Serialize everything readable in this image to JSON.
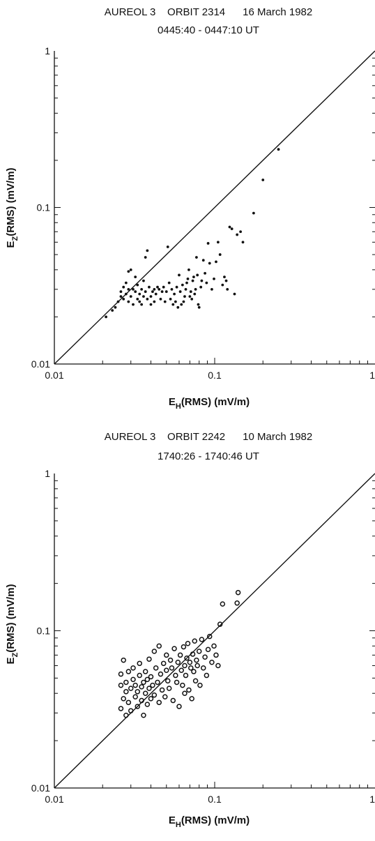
{
  "chart_data": [
    {
      "type": "scatter",
      "title_line1": [
        "AUREOL 3",
        "ORBIT 2314",
        "16 March 1982"
      ],
      "title_line2": "0445:40 - 0447:10 UT",
      "xlabel": {
        "main": "E",
        "sub": "H",
        "rest": "(RMS) (mV/m)"
      },
      "ylabel": {
        "main": "E",
        "sub": "Z",
        "rest": "(RMS) (mV/m)"
      },
      "xscale": "log",
      "yscale": "log",
      "xlim": [
        0.01,
        1
      ],
      "ylim": [
        0.01,
        1
      ],
      "x_tick_labels": [
        "0.01",
        "0.1",
        "1"
      ],
      "y_tick_labels": [
        "0.01",
        "0.1",
        "1"
      ],
      "reference_line": "y = x",
      "marker": "filled dot",
      "points": [
        [
          0.021,
          0.02
        ],
        [
          0.023,
          0.022
        ],
        [
          0.024,
          0.023
        ],
        [
          0.025,
          0.025
        ],
        [
          0.026,
          0.027
        ],
        [
          0.026,
          0.029
        ],
        [
          0.027,
          0.026
        ],
        [
          0.027,
          0.031
        ],
        [
          0.028,
          0.028
        ],
        [
          0.028,
          0.033
        ],
        [
          0.029,
          0.025
        ],
        [
          0.029,
          0.03
        ],
        [
          0.029,
          0.039
        ],
        [
          0.03,
          0.04
        ],
        [
          0.03,
          0.027
        ],
        [
          0.031,
          0.024
        ],
        [
          0.031,
          0.03
        ],
        [
          0.032,
          0.029
        ],
        [
          0.032,
          0.036
        ],
        [
          0.033,
          0.026
        ],
        [
          0.033,
          0.032
        ],
        [
          0.034,
          0.028
        ],
        [
          0.034,
          0.025
        ],
        [
          0.035,
          0.03
        ],
        [
          0.035,
          0.024
        ],
        [
          0.036,
          0.027
        ],
        [
          0.036,
          0.034
        ],
        [
          0.037,
          0.029
        ],
        [
          0.037,
          0.048
        ],
        [
          0.038,
          0.053
        ],
        [
          0.038,
          0.026
        ],
        [
          0.039,
          0.031
        ],
        [
          0.04,
          0.027
        ],
        [
          0.04,
          0.024
        ],
        [
          0.041,
          0.029
        ],
        [
          0.042,
          0.03
        ],
        [
          0.042,
          0.025
        ],
        [
          0.043,
          0.028
        ],
        [
          0.044,
          0.031
        ],
        [
          0.045,
          0.03
        ],
        [
          0.046,
          0.026
        ],
        [
          0.047,
          0.029
        ],
        [
          0.048,
          0.031
        ],
        [
          0.049,
          0.025
        ],
        [
          0.05,
          0.029
        ],
        [
          0.051,
          0.056
        ],
        [
          0.052,
          0.033
        ],
        [
          0.053,
          0.026
        ],
        [
          0.054,
          0.03
        ],
        [
          0.055,
          0.024
        ],
        [
          0.056,
          0.028
        ],
        [
          0.057,
          0.025
        ],
        [
          0.058,
          0.031
        ],
        [
          0.059,
          0.023
        ],
        [
          0.06,
          0.037
        ],
        [
          0.061,
          0.029
        ],
        [
          0.062,
          0.024
        ],
        [
          0.063,
          0.032
        ],
        [
          0.064,
          0.025
        ],
        [
          0.065,
          0.027
        ],
        [
          0.066,
          0.03
        ],
        [
          0.067,
          0.033
        ],
        [
          0.068,
          0.035
        ],
        [
          0.069,
          0.04
        ],
        [
          0.07,
          0.027
        ],
        [
          0.071,
          0.029
        ],
        [
          0.072,
          0.026
        ],
        [
          0.073,
          0.034
        ],
        [
          0.074,
          0.036
        ],
        [
          0.075,
          0.028
        ],
        [
          0.076,
          0.03
        ],
        [
          0.077,
          0.048
        ],
        [
          0.078,
          0.037
        ],
        [
          0.079,
          0.024
        ],
        [
          0.08,
          0.023
        ],
        [
          0.082,
          0.031
        ],
        [
          0.083,
          0.034
        ],
        [
          0.085,
          0.046
        ],
        [
          0.087,
          0.038
        ],
        [
          0.089,
          0.033
        ],
        [
          0.091,
          0.059
        ],
        [
          0.093,
          0.044
        ],
        [
          0.096,
          0.03
        ],
        [
          0.099,
          0.035
        ],
        [
          0.102,
          0.045
        ],
        [
          0.105,
          0.06
        ],
        [
          0.108,
          0.05
        ],
        [
          0.112,
          0.032
        ],
        [
          0.115,
          0.036
        ],
        [
          0.118,
          0.034
        ],
        [
          0.12,
          0.03
        ],
        [
          0.124,
          0.075
        ],
        [
          0.128,
          0.073
        ],
        [
          0.133,
          0.028
        ],
        [
          0.138,
          0.067
        ],
        [
          0.145,
          0.07
        ],
        [
          0.15,
          0.06
        ],
        [
          0.175,
          0.092
        ],
        [
          0.2,
          0.15
        ],
        [
          0.25,
          0.235
        ]
      ]
    },
    {
      "type": "scatter",
      "title_line1": [
        "AUREOL 3",
        "ORBIT 2242",
        "10 March 1982"
      ],
      "title_line2": "1740:26 - 1740:46 UT",
      "xlabel": {
        "main": "E",
        "sub": "H",
        "rest": "(RMS) (mV/m)"
      },
      "ylabel": {
        "main": "E",
        "sub": "Z",
        "rest": "(RMS) (mV/m)"
      },
      "xscale": "log",
      "yscale": "log",
      "xlim": [
        0.01,
        1
      ],
      "ylim": [
        0.01,
        1
      ],
      "x_tick_labels": [
        "0.01",
        "0.1",
        "1"
      ],
      "y_tick_labels": [
        "0.01",
        "0.1",
        "1"
      ],
      "reference_line": "y = x",
      "marker": "open circle",
      "points": [
        [
          0.026,
          0.032
        ],
        [
          0.026,
          0.045
        ],
        [
          0.026,
          0.053
        ],
        [
          0.027,
          0.037
        ],
        [
          0.027,
          0.065
        ],
        [
          0.028,
          0.029
        ],
        [
          0.028,
          0.041
        ],
        [
          0.028,
          0.047
        ],
        [
          0.029,
          0.035
        ],
        [
          0.029,
          0.055
        ],
        [
          0.03,
          0.031
        ],
        [
          0.03,
          0.043
        ],
        [
          0.031,
          0.049
        ],
        [
          0.031,
          0.058
        ],
        [
          0.032,
          0.038
        ],
        [
          0.032,
          0.045
        ],
        [
          0.033,
          0.033
        ],
        [
          0.033,
          0.041
        ],
        [
          0.034,
          0.052
        ],
        [
          0.034,
          0.062
        ],
        [
          0.035,
          0.036
        ],
        [
          0.035,
          0.044
        ],
        [
          0.036,
          0.029
        ],
        [
          0.036,
          0.047
        ],
        [
          0.037,
          0.04
        ],
        [
          0.037,
          0.055
        ],
        [
          0.038,
          0.034
        ],
        [
          0.038,
          0.049
        ],
        [
          0.039,
          0.043
        ],
        [
          0.039,
          0.066
        ],
        [
          0.04,
          0.037
        ],
        [
          0.04,
          0.051
        ],
        [
          0.041,
          0.045
        ],
        [
          0.042,
          0.074
        ],
        [
          0.042,
          0.039
        ],
        [
          0.043,
          0.058
        ],
        [
          0.044,
          0.047
        ],
        [
          0.045,
          0.035
        ],
        [
          0.045,
          0.08
        ],
        [
          0.046,
          0.053
        ],
        [
          0.047,
          0.042
        ],
        [
          0.048,
          0.062
        ],
        [
          0.049,
          0.038
        ],
        [
          0.05,
          0.056
        ],
        [
          0.05,
          0.07
        ],
        [
          0.051,
          0.048
        ],
        [
          0.052,
          0.043
        ],
        [
          0.053,
          0.065
        ],
        [
          0.054,
          0.058
        ],
        [
          0.055,
          0.036
        ],
        [
          0.056,
          0.077
        ],
        [
          0.057,
          0.052
        ],
        [
          0.058,
          0.047
        ],
        [
          0.059,
          0.063
        ],
        [
          0.06,
          0.033
        ],
        [
          0.061,
          0.07
        ],
        [
          0.062,
          0.056
        ],
        [
          0.063,
          0.045
        ],
        [
          0.064,
          0.079
        ],
        [
          0.065,
          0.06
        ],
        [
          0.066,
          0.052
        ],
        [
          0.067,
          0.067
        ],
        [
          0.068,
          0.083
        ],
        [
          0.069,
          0.042
        ],
        [
          0.07,
          0.063
        ],
        [
          0.071,
          0.058
        ],
        [
          0.072,
          0.037
        ],
        [
          0.073,
          0.071
        ],
        [
          0.074,
          0.055
        ],
        [
          0.075,
          0.086
        ],
        [
          0.076,
          0.048
        ],
        [
          0.077,
          0.065
        ],
        [
          0.078,
          0.06
        ],
        [
          0.08,
          0.074
        ],
        [
          0.081,
          0.045
        ],
        [
          0.083,
          0.088
        ],
        [
          0.085,
          0.058
        ],
        [
          0.087,
          0.068
        ],
        [
          0.089,
          0.052
        ],
        [
          0.091,
          0.076
        ],
        [
          0.093,
          0.092
        ],
        [
          0.096,
          0.063
        ],
        [
          0.099,
          0.08
        ],
        [
          0.102,
          0.07
        ],
        [
          0.105,
          0.06
        ],
        [
          0.108,
          0.11
        ],
        [
          0.112,
          0.148
        ],
        [
          0.138,
          0.15
        ],
        [
          0.14,
          0.175
        ],
        [
          0.065,
          0.04
        ]
      ]
    }
  ]
}
